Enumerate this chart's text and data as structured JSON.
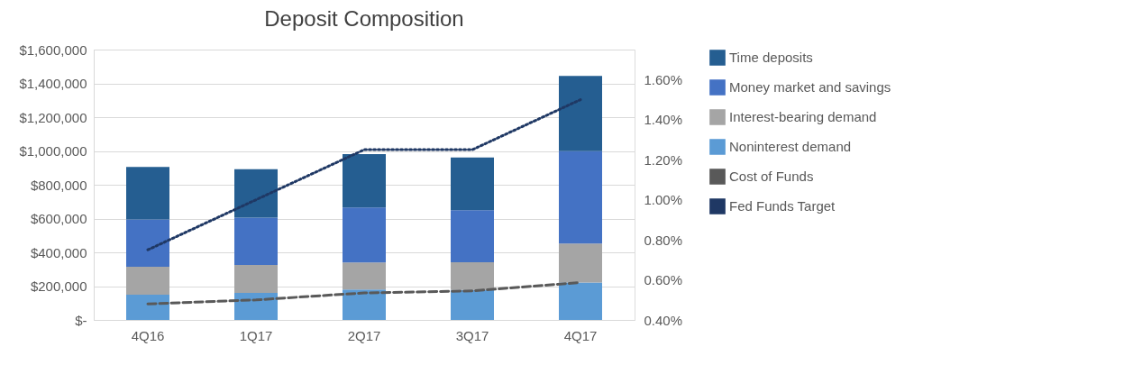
{
  "chart_data": {
    "type": "bar",
    "title": "Deposit Composition",
    "categories": [
      "4Q16",
      "1Q17",
      "2Q17",
      "3Q17",
      "4Q17"
    ],
    "stacked": true,
    "series": [
      {
        "name": "Noninterest demand",
        "color": "#5b9bd5",
        "values": [
          150000,
          160000,
          180000,
          178000,
          222000
        ]
      },
      {
        "name": "Interest-bearing demand",
        "color": "#a5a5a5",
        "values": [
          165000,
          165000,
          160000,
          163000,
          230000
        ]
      },
      {
        "name": "Money market and savings",
        "color": "#4472c4",
        "values": [
          280000,
          280000,
          325000,
          308000,
          547000
        ]
      },
      {
        "name": "Time deposits",
        "color": "#255e91",
        "values": [
          310000,
          287000,
          316000,
          313000,
          445000
        ]
      },
      {
        "name": "Cost of Funds",
        "color": "#595959",
        "type": "line",
        "axis": "y2",
        "line_style": "dashed",
        "values": [
          0.48,
          0.5,
          0.535,
          0.545,
          0.587
        ]
      },
      {
        "name": "Fed Funds Target",
        "color": "#1f3864",
        "type": "line",
        "axis": "y2",
        "line_style": "dotted",
        "values": [
          0.75,
          1.0,
          1.25,
          1.25,
          1.5
        ]
      }
    ],
    "ylim": [
      0,
      1600000
    ],
    "yticks": [
      {
        "value": 0,
        "label": "$-"
      },
      {
        "value": 200000,
        "label": "$200,000"
      },
      {
        "value": 400000,
        "label": "$400,000"
      },
      {
        "value": 600000,
        "label": "$600,000"
      },
      {
        "value": 800000,
        "label": "$800,000"
      },
      {
        "value": 1000000,
        "label": "$1,000,000"
      },
      {
        "value": 1200000,
        "label": "$1,200,000"
      },
      {
        "value": 1400000,
        "label": "$1,400,000"
      },
      {
        "value": 1600000,
        "label": "$1,600,000"
      }
    ],
    "y2lim": [
      0.4,
      1.75
    ],
    "y2ticks": [
      {
        "value": 0.4,
        "label": "0.40%"
      },
      {
        "value": 0.6,
        "label": "0.60%"
      },
      {
        "value": 0.8,
        "label": "0.80%"
      },
      {
        "value": 1.0,
        "label": "1.00%"
      },
      {
        "value": 1.2,
        "label": "1.20%"
      },
      {
        "value": 1.4,
        "label": "1.40%"
      },
      {
        "value": 1.6,
        "label": "1.60%"
      }
    ],
    "grid": "y",
    "legend": "right"
  }
}
